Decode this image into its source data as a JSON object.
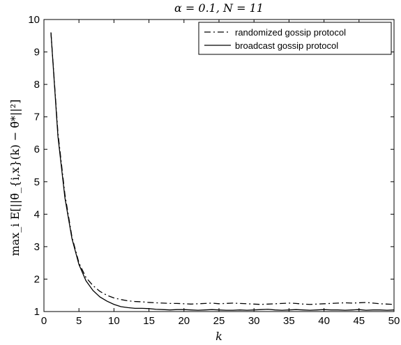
{
  "chart_data": {
    "type": "line",
    "title": "α = 0.1, N = 11",
    "xlabel": "k",
    "ylabel": "max_i E[||θ̃_{i,x}(k) − θ̃*||²]",
    "xlim": [
      0,
      50
    ],
    "ylim": [
      1,
      10
    ],
    "xticks": [
      "0",
      "5",
      "10",
      "15",
      "20",
      "25",
      "30",
      "35",
      "40",
      "45",
      "50"
    ],
    "yticks": [
      "1",
      "2",
      "3",
      "4",
      "5",
      "6",
      "7",
      "8",
      "9",
      "10"
    ],
    "grid": false,
    "legend_position": "top-right",
    "series": [
      {
        "name": "randomized gossip protocol",
        "style": "dashdot",
        "color": "#000000",
        "x": [
          1,
          2,
          3,
          4,
          5,
          6,
          7,
          8,
          9,
          10,
          11,
          12,
          13,
          14,
          15,
          16,
          17,
          18,
          19,
          20,
          21,
          22,
          23,
          24,
          25,
          26,
          27,
          28,
          29,
          30,
          31,
          32,
          33,
          34,
          35,
          36,
          37,
          38,
          39,
          40,
          41,
          42,
          43,
          44,
          45,
          46,
          47,
          48,
          49,
          50
        ],
        "y": [
          9.6,
          6.5,
          4.6,
          3.3,
          2.5,
          2.05,
          1.8,
          1.62,
          1.5,
          1.42,
          1.37,
          1.33,
          1.31,
          1.3,
          1.28,
          1.27,
          1.26,
          1.25,
          1.25,
          1.24,
          1.23,
          1.24,
          1.25,
          1.26,
          1.24,
          1.25,
          1.26,
          1.25,
          1.24,
          1.23,
          1.22,
          1.23,
          1.24,
          1.25,
          1.26,
          1.25,
          1.23,
          1.22,
          1.23,
          1.24,
          1.25,
          1.26,
          1.27,
          1.26,
          1.27,
          1.28,
          1.26,
          1.24,
          1.23,
          1.22
        ]
      },
      {
        "name": "broadcast gossip protocol",
        "style": "solid",
        "color": "#000000",
        "x": [
          1,
          2,
          3,
          4,
          5,
          6,
          7,
          8,
          9,
          10,
          11,
          12,
          13,
          14,
          15,
          16,
          17,
          18,
          19,
          20,
          21,
          22,
          23,
          24,
          25,
          26,
          27,
          28,
          29,
          30,
          31,
          32,
          33,
          34,
          35,
          36,
          37,
          38,
          39,
          40,
          41,
          42,
          43,
          44,
          45,
          46,
          47,
          48,
          49,
          50
        ],
        "y": [
          9.6,
          6.4,
          4.5,
          3.25,
          2.45,
          1.95,
          1.65,
          1.45,
          1.32,
          1.22,
          1.15,
          1.12,
          1.1,
          1.1,
          1.09,
          1.07,
          1.06,
          1.05,
          1.06,
          1.06,
          1.05,
          1.04,
          1.05,
          1.06,
          1.05,
          1.04,
          1.04,
          1.05,
          1.04,
          1.05,
          1.06,
          1.07,
          1.05,
          1.04,
          1.05,
          1.06,
          1.05,
          1.04,
          1.05,
          1.06,
          1.05,
          1.05,
          1.04,
          1.05,
          1.06,
          1.04,
          1.05,
          1.05,
          1.04,
          1.05
        ]
      }
    ]
  }
}
